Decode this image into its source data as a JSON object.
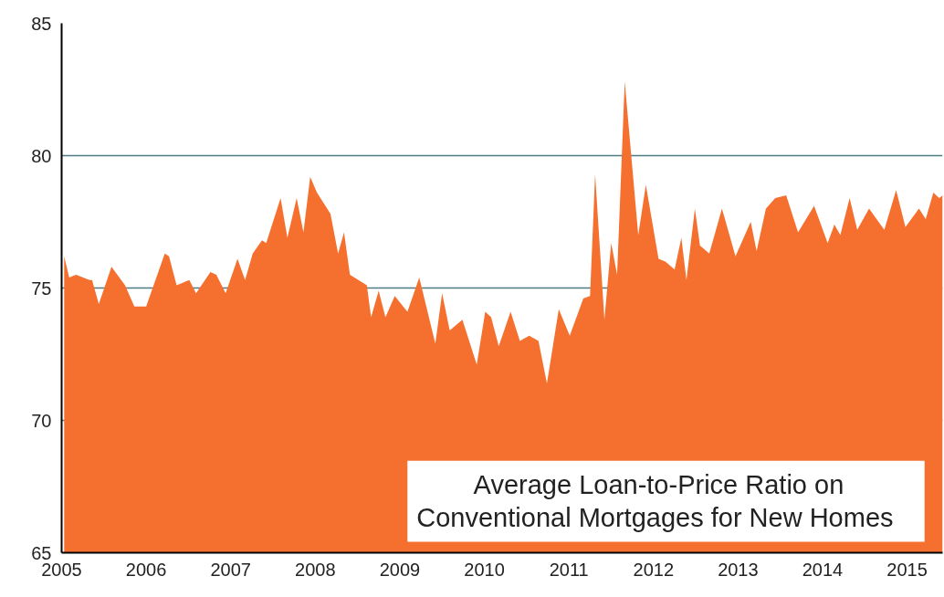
{
  "chart_data": {
    "type": "area",
    "title": "Average  Loan-to-Price Ratio  on\nConventional  Mortgages  for New  Homes",
    "x": [
      2005.03,
      2005.09,
      2005.17,
      2005.33,
      2005.36,
      2005.44,
      2005.59,
      2005.75,
      2005.86,
      2006.0,
      2006.22,
      2006.27,
      2006.36,
      2006.51,
      2006.59,
      2006.76,
      2006.83,
      2006.94,
      2007.08,
      2007.17,
      2007.26,
      2007.37,
      2007.42,
      2007.59,
      2007.67,
      2007.78,
      2007.86,
      2007.94,
      2008.02,
      2008.18,
      2008.27,
      2008.34,
      2008.41,
      2008.51,
      2008.61,
      2008.66,
      2008.75,
      2008.83,
      2008.94,
      2009.09,
      2009.23,
      2009.42,
      2009.5,
      2009.59,
      2009.74,
      2009.91,
      2010.01,
      2010.08,
      2010.17,
      2010.31,
      2010.42,
      2010.53,
      2010.64,
      2010.74,
      2010.88,
      2011.01,
      2011.17,
      2011.25,
      2011.31,
      2011.42,
      2011.5,
      2011.57,
      2011.66,
      2011.82,
      2011.91,
      2012.06,
      2012.14,
      2012.25,
      2012.33,
      2012.39,
      2012.49,
      2012.55,
      2012.66,
      2012.81,
      2012.97,
      2013.15,
      2013.22,
      2013.33,
      2013.44,
      2013.57,
      2013.71,
      2013.9,
      2014.06,
      2014.14,
      2014.21,
      2014.32,
      2014.41,
      2014.55,
      2014.73,
      2014.87,
      2014.98,
      2015.14,
      2015.22,
      2015.31,
      2015.38,
      2015.42
    ],
    "values": [
      76.2,
      75.4,
      75.5,
      75.3,
      75.3,
      74.4,
      75.8,
      75.1,
      74.3,
      74.3,
      76.3,
      76.2,
      75.1,
      75.3,
      74.8,
      75.6,
      75.5,
      74.8,
      76.1,
      75.3,
      76.3,
      76.8,
      76.7,
      78.4,
      76.9,
      78.4,
      77.1,
      79.2,
      78.6,
      77.8,
      76.3,
      77.1,
      75.5,
      75.3,
      75.1,
      73.9,
      74.9,
      73.9,
      74.7,
      74.1,
      75.4,
      72.9,
      74.8,
      73.4,
      73.8,
      72.1,
      74.1,
      73.9,
      72.8,
      74.1,
      73.0,
      73.2,
      73.0,
      71.4,
      74.2,
      73.2,
      74.6,
      74.7,
      79.3,
      73.8,
      76.7,
      75.5,
      82.8,
      77.0,
      78.9,
      76.1,
      76.0,
      75.7,
      76.9,
      75.3,
      78.0,
      76.6,
      76.3,
      78.0,
      76.2,
      77.5,
      76.4,
      78.0,
      78.4,
      78.5,
      77.1,
      78.1,
      76.7,
      77.4,
      77.0,
      78.4,
      77.2,
      78.0,
      77.2,
      78.7,
      77.3,
      78.0,
      77.6,
      78.6,
      78.4,
      78.5
    ],
    "color": "#f5702f",
    "xlim": [
      2005,
      2015.42
    ],
    "ylim": [
      65,
      85
    ],
    "xticks": [
      2005,
      2006,
      2007,
      2008,
      2009,
      2010,
      2011,
      2012,
      2013,
      2014,
      2015
    ],
    "yticks": [
      65,
      70,
      75,
      80,
      85
    ],
    "grid": "y"
  }
}
